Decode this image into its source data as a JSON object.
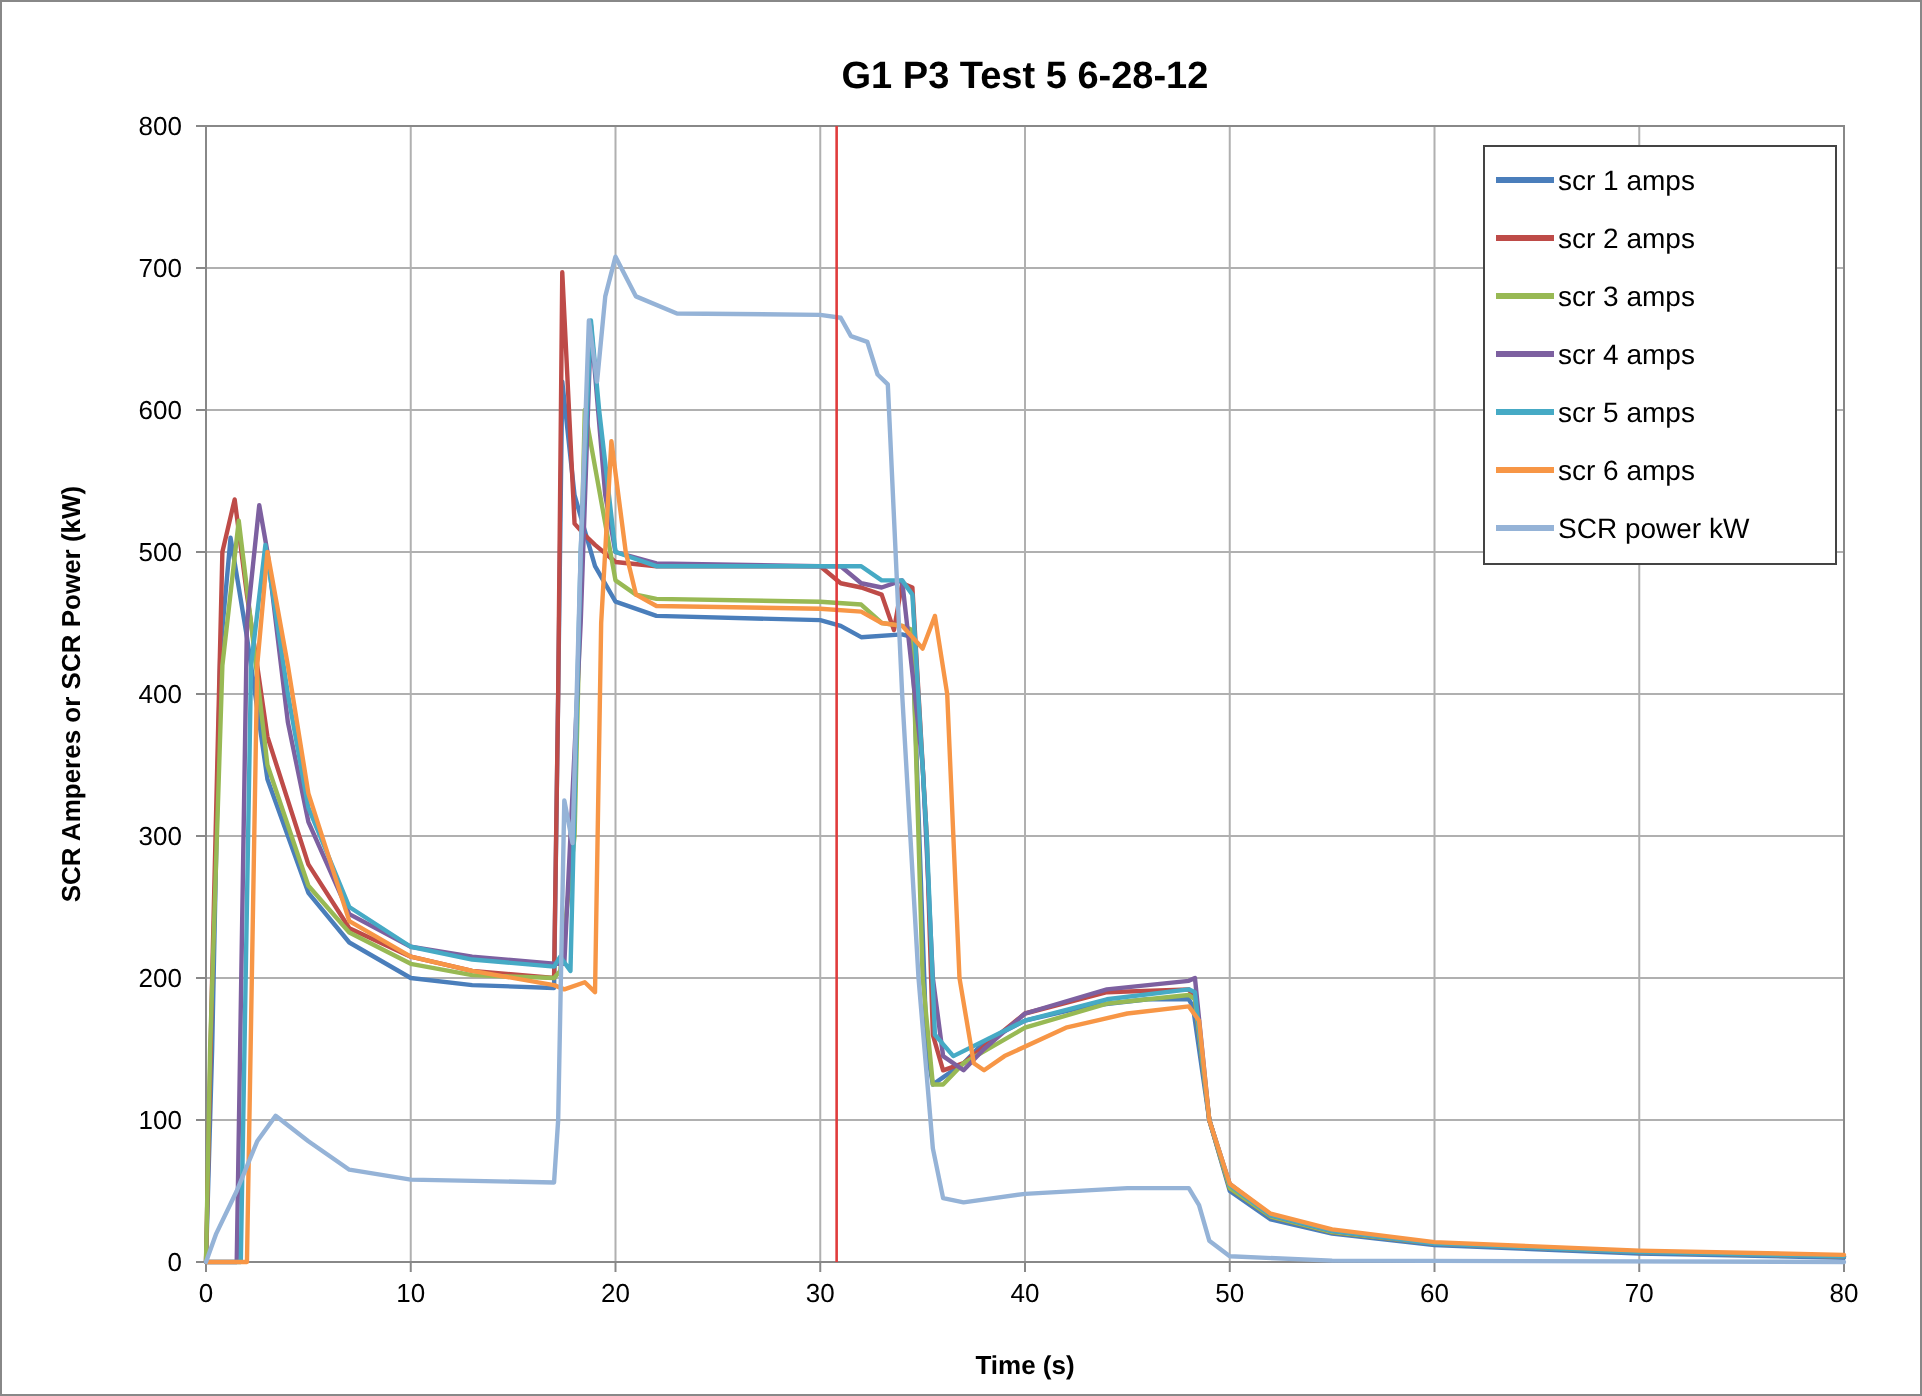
{
  "chart_data": {
    "type": "line",
    "title": "G1 P3 Test 5 6-28-12",
    "xlabel": "Time (s)",
    "ylabel": "SCR Amperes or SCR Power (kW)",
    "xlim": [
      0,
      80
    ],
    "xticks": [
      0,
      10,
      20,
      30,
      40,
      50,
      60,
      70,
      80
    ],
    "ylim": [
      0,
      800
    ],
    "yticks": [
      0,
      100,
      200,
      300,
      400,
      500,
      600,
      700,
      800
    ],
    "grid": true,
    "legend": "top right",
    "line_style": "solid",
    "ref_lines": [
      {
        "axis": "x",
        "value": 30.8,
        "color": "#e03c3c"
      }
    ],
    "series": [
      {
        "name": "scr 1 amps",
        "color": "#4a7ebb",
        "x": [
          0,
          0.3,
          0.7,
          1.2,
          2,
          3,
          5,
          7,
          10,
          13,
          17,
          17.2,
          17.4,
          18,
          19,
          20,
          22,
          30,
          31,
          32,
          34,
          34.5,
          35.2,
          35.5,
          36,
          37,
          38,
          40,
          43,
          46,
          48,
          48.2,
          49,
          50,
          52,
          55,
          60,
          70,
          80
        ],
        "values": [
          0,
          150,
          430,
          510,
          440,
          340,
          260,
          225,
          200,
          195,
          193,
          400,
          620,
          540,
          490,
          465,
          455,
          452,
          448,
          440,
          442,
          440,
          150,
          125,
          130,
          140,
          155,
          170,
          180,
          185,
          185,
          180,
          100,
          50,
          30,
          20,
          12,
          6,
          3
        ]
      },
      {
        "name": "scr 2 amps",
        "color": "#be4b48",
        "x": [
          0,
          0.3,
          0.8,
          1.4,
          2,
          3,
          5,
          7,
          10,
          13,
          17,
          17.2,
          17.4,
          18,
          18.5,
          19,
          20,
          22,
          30,
          31,
          32,
          33,
          33.6,
          34,
          34.5,
          35.2,
          35.5,
          36,
          37,
          40,
          44,
          48,
          48.3,
          49,
          50,
          52,
          55,
          60,
          70,
          80
        ],
        "values": [
          0,
          200,
          500,
          537,
          470,
          370,
          280,
          235,
          215,
          205,
          200,
          400,
          697,
          520,
          512,
          505,
          493,
          490,
          490,
          478,
          475,
          470,
          445,
          478,
          475,
          300,
          160,
          135,
          140,
          175,
          190,
          192,
          185,
          100,
          52,
          32,
          21,
          13,
          7,
          4
        ]
      },
      {
        "name": "scr 3 amps",
        "color": "#98b954",
        "x": [
          0,
          0.2,
          0.8,
          1.6,
          2.2,
          3,
          5,
          7,
          10,
          13,
          17,
          17.3,
          18,
          18.5,
          19,
          20,
          21,
          22,
          30,
          32,
          33,
          34,
          34.5,
          35,
          35.5,
          36,
          37,
          40,
          44,
          48,
          48.3,
          49,
          50,
          52,
          55,
          60,
          70,
          80
        ],
        "values": [
          0,
          150,
          420,
          522,
          450,
          350,
          265,
          232,
          210,
          202,
          200,
          205,
          300,
          600,
          560,
          480,
          470,
          467,
          465,
          463,
          450,
          448,
          445,
          200,
          125,
          125,
          140,
          165,
          182,
          188,
          185,
          100,
          52,
          32,
          21,
          13,
          7,
          4
        ]
      },
      {
        "name": "scr 4 amps",
        "color": "#7d60a0",
        "x": [
          0,
          1.5,
          2,
          2.6,
          3,
          4,
          5,
          7,
          10,
          13,
          17,
          17.5,
          18.3,
          18.8,
          19.5,
          20,
          22,
          30,
          31,
          32,
          33,
          34,
          35,
          35.5,
          36,
          37,
          38,
          40,
          44,
          48,
          48.3,
          49,
          50,
          52,
          55,
          60,
          70,
          80
        ],
        "values": [
          0,
          0,
          450,
          533,
          500,
          380,
          310,
          245,
          222,
          215,
          210,
          210,
          450,
          660,
          540,
          500,
          492,
          490,
          490,
          478,
          475,
          480,
          350,
          200,
          145,
          135,
          150,
          175,
          192,
          198,
          200,
          100,
          55,
          33,
          22,
          13,
          7,
          4
        ]
      },
      {
        "name": "scr 5 amps",
        "color": "#46aac5",
        "x": [
          0,
          1.7,
          2.2,
          2.9,
          4,
          5,
          7,
          10,
          13,
          17,
          17.3,
          17.8,
          18.3,
          18.8,
          19.2,
          20,
          22,
          30,
          32,
          33,
          34,
          34.5,
          35.2,
          35.6,
          36.5,
          40,
          44,
          48,
          48.3,
          49,
          50,
          52,
          55,
          60,
          70,
          80
        ],
        "values": [
          0,
          0,
          420,
          505,
          400,
          320,
          250,
          222,
          213,
          208,
          215,
          205,
          500,
          663,
          600,
          500,
          490,
          490,
          490,
          480,
          480,
          470,
          300,
          160,
          145,
          170,
          185,
          192,
          190,
          100,
          54,
          33,
          22,
          13,
          7,
          4
        ]
      },
      {
        "name": "scr 6 amps",
        "color": "#f79646",
        "x": [
          0,
          2,
          2.5,
          3,
          4,
          5,
          7,
          10,
          13,
          17,
          17.5,
          18.5,
          19,
          19.3,
          19.8,
          20.5,
          21,
          22,
          30,
          32,
          33,
          34,
          35,
          35.6,
          36.2,
          36.8,
          37.5,
          38,
          39,
          42,
          45,
          48,
          48.5,
          49,
          50,
          52,
          55,
          60,
          70,
          80
        ],
        "values": [
          0,
          0,
          420,
          500,
          420,
          330,
          240,
          215,
          205,
          195,
          192,
          197,
          190,
          450,
          578,
          500,
          470,
          462,
          460,
          458,
          450,
          448,
          432,
          455,
          400,
          200,
          140,
          135,
          145,
          165,
          175,
          180,
          170,
          100,
          55,
          34,
          23,
          14,
          8,
          5
        ]
      },
      {
        "name": "SCR power kW",
        "color": "#95b3d7",
        "x": [
          0,
          0.5,
          1.5,
          2.5,
          3.4,
          5,
          7,
          10,
          17,
          17.2,
          17.5,
          17.9,
          18.3,
          18.7,
          19.1,
          19.5,
          20,
          21,
          23,
          30,
          31,
          31.5,
          32.3,
          32.8,
          33.3,
          34,
          34.8,
          35.5,
          36,
          37,
          40,
          45,
          48,
          48.5,
          49,
          50,
          55,
          80
        ],
        "values": [
          0,
          20,
          50,
          85,
          103,
          85,
          65,
          58,
          56,
          100,
          325,
          295,
          500,
          663,
          620,
          680,
          708,
          680,
          668,
          667,
          665,
          652,
          648,
          625,
          618,
          400,
          200,
          80,
          45,
          42,
          48,
          52,
          52,
          40,
          15,
          4,
          1,
          0
        ]
      }
    ]
  }
}
